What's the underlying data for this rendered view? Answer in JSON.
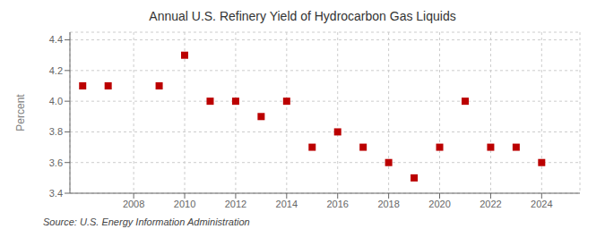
{
  "chart_data": {
    "type": "scatter",
    "title": "Annual U.S. Refinery Yield of Hydrocarbon Gas Liquids",
    "y_label": "Percent",
    "annotations": [
      "Source: U.S. Energy Information Administration"
    ],
    "x": [
      2006,
      2007,
      2009,
      2010,
      2011,
      2012,
      2013,
      2014,
      2015,
      2016,
      2017,
      2018,
      2019,
      2020,
      2021,
      2022,
      2023,
      2024
    ],
    "values": [
      4.1,
      4.1,
      4.1,
      4.3,
      4.0,
      4.0,
      3.9,
      4.0,
      3.7,
      3.8,
      3.7,
      3.6,
      3.5,
      3.7,
      4.0,
      3.7,
      3.7,
      3.6
    ],
    "color": "#bb0000",
    "marker": "square",
    "xlim": [
      2005.5,
      2025.5
    ],
    "xticks": [
      2008,
      2010,
      2012,
      2014,
      2016,
      2018,
      2020,
      2022,
      2024
    ],
    "ylim": [
      3.4,
      4.45
    ],
    "yticks": [
      3.4,
      3.6,
      3.8,
      {
        "value": 4,
        "label": "4.0"
      },
      4.2,
      4.4
    ],
    "grid": true
  }
}
